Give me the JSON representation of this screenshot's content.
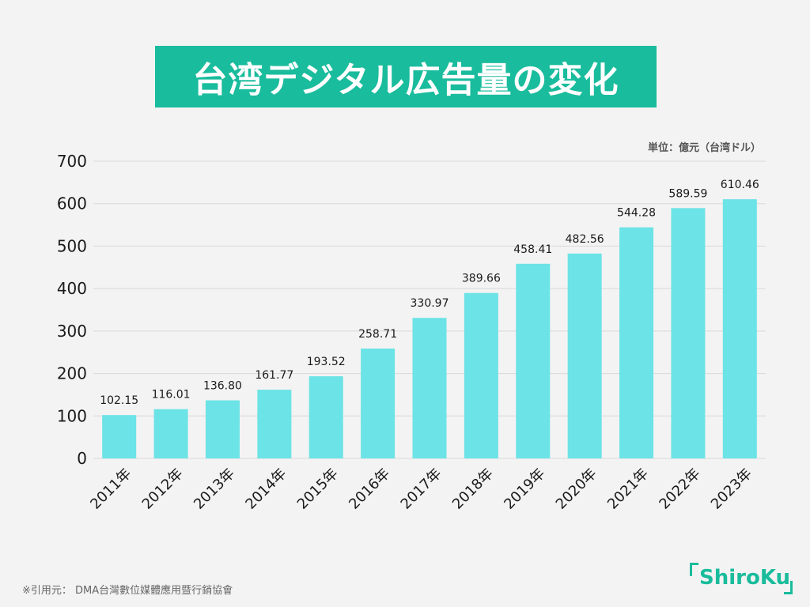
{
  "title": "台湾デジタル広告量の変化",
  "unit_label": "単位：億元（台湾ドル）",
  "source": "※引用元： DMA台灣數位媒體應用暨行銷協會",
  "logo": "ShiroKu",
  "colors": {
    "title_bg": "#19bc9c",
    "bar": "#6ce3e6",
    "grid": "#d9d9d9",
    "text": "#1a1a1a",
    "logo": "#19bc9c"
  },
  "chart_data": {
    "type": "bar",
    "categories": [
      "2011年",
      "2012年",
      "2013年",
      "2014年",
      "2015年",
      "2016年",
      "2017年",
      "2018年",
      "2019年",
      "2020年",
      "2021年",
      "2022年",
      "2023年"
    ],
    "values": [
      102.15,
      116.01,
      136.8,
      161.77,
      193.52,
      258.71,
      330.97,
      389.66,
      458.41,
      482.56,
      544.28,
      589.59,
      610.46
    ],
    "value_labels": [
      "102.15",
      "116.01",
      "136.80",
      "161.77",
      "193.52",
      "258.71",
      "330.97",
      "389.66",
      "458.41",
      "482.56",
      "544.28",
      "589.59",
      "610.46"
    ],
    "yticks": [
      0,
      100,
      200,
      300,
      400,
      500,
      600,
      700
    ],
    "ylim": [
      0,
      700
    ],
    "grid": true
  }
}
